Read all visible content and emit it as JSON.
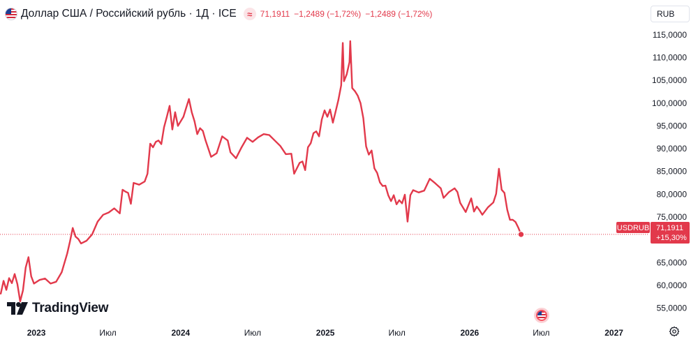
{
  "header": {
    "title": "Доллар США / Российский рубль · 1Д · ICE",
    "approx_symbol": "≈",
    "price": "71,1911",
    "change_1": "−1,2489 (−1,72%)",
    "change_2": "−1,2489 (−1,72%)"
  },
  "currency_selector": {
    "label": "RUB"
  },
  "watermark": {
    "text": "TradingView"
  },
  "price_label": {
    "symbol": "USDRUB",
    "value": "71,1911",
    "change_percent": "+15,30%"
  },
  "colors": {
    "series": "#e2394b",
    "label_bg": "#e2394b",
    "axis_text": "#131722",
    "grid": "none"
  },
  "chart_data": {
    "type": "line",
    "title": "Доллар США / Российский рубль",
    "xlabel": "",
    "ylabel": "",
    "x_ticks": [
      "2023",
      "Июл",
      "2024",
      "Июл",
      "2025",
      "Июл",
      "2026",
      "Июл",
      "2027"
    ],
    "x_tick_dates": [
      "2023-01-01",
      "2023-07-01",
      "2024-01-01",
      "2024-07-01",
      "2025-01-01",
      "2025-07-01",
      "2026-01-01",
      "2026-07-01",
      "2027-01-01"
    ],
    "xlim": [
      "2022-10-01",
      "2027-03-31"
    ],
    "y_ticks": [
      55,
      60,
      65,
      70,
      75,
      80,
      85,
      90,
      95,
      100,
      105,
      110,
      115
    ],
    "y_tick_labels": [
      "55,0000",
      "60,0000",
      "65,0000",
      "",
      "75,0000",
      "80,0000",
      "85,0000",
      "90,0000",
      "95,0000",
      "100,0000",
      "105,0000",
      "110,0000",
      "115,0000"
    ],
    "ylim": [
      52.5,
      116.5
    ],
    "grid": false,
    "reference_line": 71.1911,
    "series": [
      {
        "symbol": "USDRUB",
        "points": [
          [
            "2022-10-03",
            58.2
          ],
          [
            "2022-10-10",
            61.0
          ],
          [
            "2022-10-17",
            59.0
          ],
          [
            "2022-10-24",
            61.6
          ],
          [
            "2022-10-31",
            60.5
          ],
          [
            "2022-11-07",
            62.5
          ],
          [
            "2022-11-14",
            60.3
          ],
          [
            "2022-11-21",
            56.5
          ],
          [
            "2022-11-28",
            58.9
          ],
          [
            "2022-12-05",
            63.9
          ],
          [
            "2022-12-12",
            66.2
          ],
          [
            "2022-12-19",
            62.0
          ],
          [
            "2022-12-26",
            60.4
          ],
          [
            "2023-01-09",
            61.2
          ],
          [
            "2023-01-23",
            61.5
          ],
          [
            "2023-02-06",
            60.4
          ],
          [
            "2023-02-20",
            60.8
          ],
          [
            "2023-03-06",
            62.9
          ],
          [
            "2023-03-20",
            67.0
          ],
          [
            "2023-03-27",
            69.6
          ],
          [
            "2023-04-03",
            72.6
          ],
          [
            "2023-04-10",
            70.7
          ],
          [
            "2023-04-17",
            70.2
          ],
          [
            "2023-04-24",
            69.2
          ],
          [
            "2023-05-08",
            69.8
          ],
          [
            "2023-05-22",
            71.2
          ],
          [
            "2023-06-05",
            74.0
          ],
          [
            "2023-06-19",
            75.5
          ],
          [
            "2023-07-03",
            76.0
          ],
          [
            "2023-07-17",
            76.9
          ],
          [
            "2023-07-31",
            75.8
          ],
          [
            "2023-08-07",
            81.0
          ],
          [
            "2023-08-14",
            80.6
          ],
          [
            "2023-08-21",
            80.3
          ],
          [
            "2023-08-28",
            77.9
          ],
          [
            "2023-09-04",
            82.5
          ],
          [
            "2023-09-18",
            82.1
          ],
          [
            "2023-10-02",
            82.8
          ],
          [
            "2023-10-09",
            84.5
          ],
          [
            "2023-10-16",
            91.1
          ],
          [
            "2023-10-23",
            90.3
          ],
          [
            "2023-10-30",
            91.5
          ],
          [
            "2023-11-06",
            91.8
          ],
          [
            "2023-11-13",
            91.0
          ],
          [
            "2023-11-20",
            94.7
          ],
          [
            "2023-11-27",
            97.0
          ],
          [
            "2023-12-04",
            99.4
          ],
          [
            "2023-12-11",
            94.2
          ],
          [
            "2023-12-18",
            98.0
          ],
          [
            "2023-12-25",
            95.0
          ],
          [
            "2024-01-08",
            97.0
          ],
          [
            "2024-01-15",
            99.0
          ],
          [
            "2024-01-22",
            100.9
          ],
          [
            "2024-01-29",
            98.0
          ],
          [
            "2024-02-05",
            96.0
          ],
          [
            "2024-02-12",
            93.2
          ],
          [
            "2024-02-19",
            94.5
          ],
          [
            "2024-02-26",
            93.9
          ],
          [
            "2024-03-04",
            91.8
          ],
          [
            "2024-03-18",
            88.2
          ],
          [
            "2024-04-01",
            89.0
          ],
          [
            "2024-04-15",
            92.7
          ],
          [
            "2024-04-29",
            91.8
          ],
          [
            "2024-05-06",
            89.2
          ],
          [
            "2024-05-20",
            87.9
          ],
          [
            "2024-06-03",
            90.3
          ],
          [
            "2024-06-17",
            92.4
          ],
          [
            "2024-07-01",
            91.5
          ],
          [
            "2024-07-15",
            92.5
          ],
          [
            "2024-07-29",
            93.2
          ],
          [
            "2024-08-12",
            93.0
          ],
          [
            "2024-08-26",
            91.8
          ],
          [
            "2024-09-09",
            90.6
          ],
          [
            "2024-09-23",
            88.8
          ],
          [
            "2024-10-07",
            88.9
          ],
          [
            "2024-10-14",
            84.5
          ],
          [
            "2024-10-28",
            86.9
          ],
          [
            "2024-11-04",
            87.2
          ],
          [
            "2024-11-11",
            85.3
          ],
          [
            "2024-11-18",
            90.3
          ],
          [
            "2024-11-25",
            91.2
          ],
          [
            "2024-12-02",
            93.4
          ],
          [
            "2024-12-09",
            93.8
          ],
          [
            "2024-12-16",
            92.7
          ],
          [
            "2024-12-23",
            96.4
          ],
          [
            "2024-12-30",
            98.4
          ],
          [
            "2025-01-06",
            97.0
          ],
          [
            "2025-01-13",
            98.6
          ],
          [
            "2025-01-20",
            95.7
          ],
          [
            "2025-01-27",
            98.2
          ],
          [
            "2025-02-03",
            100.7
          ],
          [
            "2025-02-10",
            103.9
          ],
          [
            "2025-02-14",
            113.2
          ],
          [
            "2025-02-17",
            104.8
          ],
          [
            "2025-02-24",
            106.3
          ],
          [
            "2025-03-03",
            109.0
          ],
          [
            "2025-03-05",
            113.6
          ],
          [
            "2025-03-10",
            103.3
          ],
          [
            "2025-03-17",
            102.6
          ],
          [
            "2025-03-24",
            101.6
          ],
          [
            "2025-03-31",
            100.0
          ],
          [
            "2025-04-07",
            96.7
          ],
          [
            "2025-04-14",
            90.5
          ],
          [
            "2025-04-21",
            88.7
          ],
          [
            "2025-04-28",
            89.6
          ],
          [
            "2025-05-05",
            85.7
          ],
          [
            "2025-05-12",
            84.7
          ],
          [
            "2025-05-19",
            82.6
          ],
          [
            "2025-05-26",
            81.8
          ],
          [
            "2025-06-02",
            81.9
          ],
          [
            "2025-06-09",
            79.8
          ],
          [
            "2025-06-16",
            78.5
          ],
          [
            "2025-06-23",
            79.8
          ],
          [
            "2025-06-30",
            77.8
          ],
          [
            "2025-07-07",
            78.7
          ],
          [
            "2025-07-14",
            78.0
          ],
          [
            "2025-07-21",
            79.9
          ],
          [
            "2025-07-28",
            74.0
          ],
          [
            "2025-08-04",
            79.8
          ],
          [
            "2025-08-11",
            80.9
          ],
          [
            "2025-08-25",
            80.4
          ],
          [
            "2025-09-08",
            80.8
          ],
          [
            "2025-09-22",
            83.4
          ],
          [
            "2025-10-06",
            82.4
          ],
          [
            "2025-10-20",
            81.3
          ],
          [
            "2025-10-27",
            79.2
          ],
          [
            "2025-11-10",
            80.5
          ],
          [
            "2025-11-24",
            81.3
          ],
          [
            "2025-12-01",
            80.5
          ],
          [
            "2025-12-08",
            78.1
          ],
          [
            "2025-12-22",
            76.1
          ],
          [
            "2026-01-05",
            79.1
          ],
          [
            "2026-01-12",
            76.2
          ],
          [
            "2026-01-19",
            77.3
          ],
          [
            "2026-01-26",
            76.5
          ],
          [
            "2026-02-02",
            75.5
          ],
          [
            "2026-02-16",
            77.1
          ],
          [
            "2026-03-02",
            78.2
          ],
          [
            "2026-03-09",
            80.1
          ],
          [
            "2026-03-16",
            85.6
          ],
          [
            "2026-03-23",
            81.0
          ],
          [
            "2026-03-30",
            80.3
          ],
          [
            "2026-04-06",
            76.6
          ],
          [
            "2026-04-13",
            74.4
          ],
          [
            "2026-04-20",
            74.4
          ],
          [
            "2026-04-27",
            73.9
          ],
          [
            "2026-05-04",
            72.7
          ],
          [
            "2026-05-11",
            71.19
          ]
        ]
      }
    ]
  }
}
